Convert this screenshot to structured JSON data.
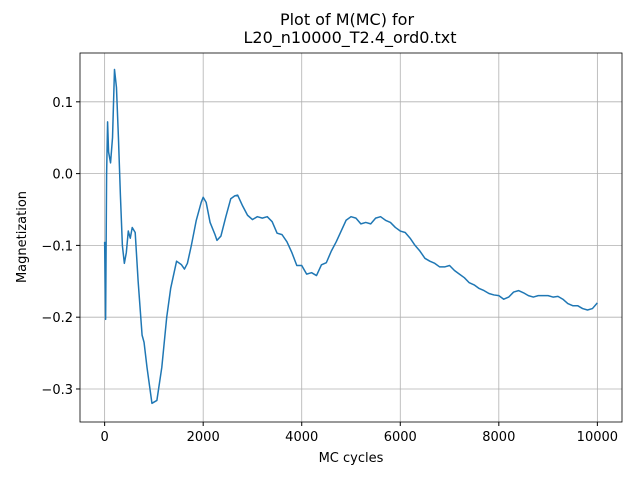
{
  "chart_data": {
    "type": "line",
    "title": [
      "Plot of M(MC) for",
      "L20_n10000_T2.4_ord0.txt"
    ],
    "xlabel": "MC cycles",
    "ylabel": "Magnetization",
    "x": [
      0,
      20,
      40,
      60,
      80,
      120,
      160,
      200,
      240,
      280,
      320,
      360,
      400,
      440,
      480,
      520,
      560,
      620,
      680,
      760,
      800,
      860,
      960,
      1060,
      1160,
      1260,
      1340,
      1460,
      1560,
      1620,
      1680,
      1760,
      1860,
      1960,
      2000,
      2060,
      2140,
      2240,
      2280,
      2360,
      2460,
      2560,
      2640,
      2700,
      2800,
      2900,
      3000,
      3100,
      3200,
      3300,
      3400,
      3500,
      3600,
      3700,
      3800,
      3900,
      4000,
      4100,
      4200,
      4300,
      4400,
      4500,
      4600,
      4700,
      4800,
      4900,
      5000,
      5100,
      5200,
      5300,
      5400,
      5500,
      5600,
      5700,
      5800,
      5900,
      6000,
      6100,
      6200,
      6300,
      6400,
      6500,
      6600,
      6700,
      6800,
      6900,
      7000,
      7100,
      7200,
      7300,
      7400,
      7500,
      7600,
      7700,
      7800,
      7900,
      8000,
      8100,
      8200,
      8300,
      8400,
      8500,
      8600,
      8700,
      8800,
      8900,
      9000,
      9100,
      9200,
      9300,
      9400,
      9500,
      9600,
      9700,
      9800,
      9900,
      10000
    ],
    "series": [
      {
        "name": "M",
        "color": "#1f77b4",
        "values": [
          -0.095,
          -0.203,
          0.0,
          0.072,
          0.03,
          0.015,
          0.05,
          0.145,
          0.12,
          0.05,
          -0.03,
          -0.1,
          -0.125,
          -0.11,
          -0.08,
          -0.09,
          -0.075,
          -0.082,
          -0.15,
          -0.225,
          -0.235,
          -0.27,
          -0.32,
          -0.316,
          -0.27,
          -0.2,
          -0.16,
          -0.122,
          -0.127,
          -0.133,
          -0.125,
          -0.1,
          -0.065,
          -0.04,
          -0.033,
          -0.04,
          -0.068,
          -0.085,
          -0.093,
          -0.087,
          -0.06,
          -0.035,
          -0.031,
          -0.03,
          -0.045,
          -0.058,
          -0.064,
          -0.06,
          -0.062,
          -0.06,
          -0.067,
          -0.083,
          -0.085,
          -0.095,
          -0.11,
          -0.128,
          -0.128,
          -0.14,
          -0.138,
          -0.142,
          -0.127,
          -0.124,
          -0.108,
          -0.095,
          -0.08,
          -0.065,
          -0.06,
          -0.062,
          -0.07,
          -0.068,
          -0.07,
          -0.062,
          -0.06,
          -0.065,
          -0.068,
          -0.075,
          -0.08,
          -0.082,
          -0.09,
          -0.1,
          -0.108,
          -0.118,
          -0.122,
          -0.125,
          -0.13,
          -0.13,
          -0.128,
          -0.135,
          -0.14,
          -0.145,
          -0.152,
          -0.155,
          -0.16,
          -0.163,
          -0.167,
          -0.169,
          -0.17,
          -0.175,
          -0.172,
          -0.165,
          -0.163,
          -0.166,
          -0.17,
          -0.172,
          -0.17,
          -0.17,
          -0.17,
          -0.172,
          -0.171,
          -0.175,
          -0.181,
          -0.184,
          -0.184,
          -0.188,
          -0.19,
          -0.188,
          -0.18
        ]
      }
    ],
    "xlim": [
      -500,
      10500
    ],
    "ylim": [
      -0.346,
      0.168
    ],
    "xticks": [
      0,
      2000,
      4000,
      6000,
      8000,
      10000
    ],
    "yticks": [
      {
        "value": -0.3,
        "label": "−0.3"
      },
      {
        "value": -0.2,
        "label": "−0.2"
      },
      {
        "value": -0.1,
        "label": "−0.1"
      },
      {
        "value": 0,
        "label": "0.0"
      },
      0.1
    ],
    "grid": true
  }
}
